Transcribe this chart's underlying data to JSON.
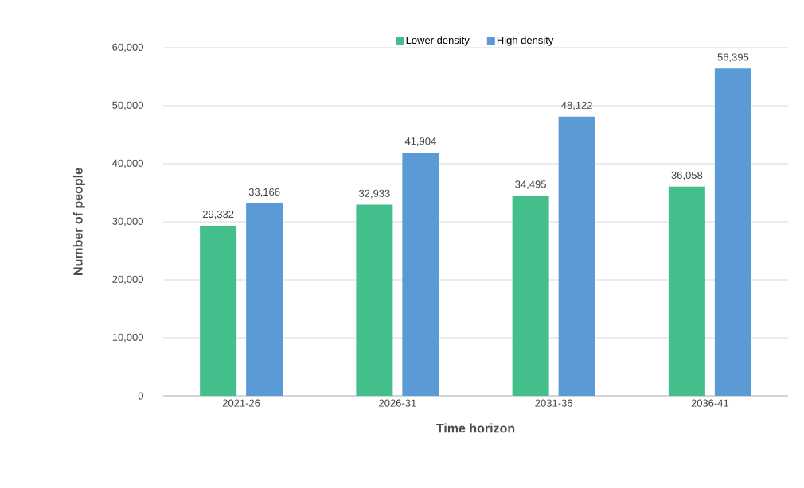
{
  "chart_data": {
    "type": "bar",
    "xlabel": "Time horizon",
    "ylabel": "Number of people",
    "categories": [
      "2021-26",
      "2026-31",
      "2031-36",
      "2036-41"
    ],
    "series": [
      {
        "name": "Lower density",
        "color": "#43bf8c",
        "values": [
          29332,
          32933,
          34495,
          36058
        ],
        "value_labels": [
          "29,332",
          "32,933",
          "34,495",
          "36,058"
        ]
      },
      {
        "name": "High density",
        "color": "#5b9bd5",
        "values": [
          33166,
          41904,
          48122,
          56395
        ],
        "value_labels": [
          "33,166",
          "41,904",
          "48,122",
          "56,395"
        ]
      }
    ],
    "ylim": [
      0,
      60000
    ],
    "yticks": [
      0,
      {
        "value": 10000,
        "label": "10,000"
      },
      {
        "value": 20000,
        "label": "20,000"
      },
      {
        "value": 30000,
        "label": "30,000"
      },
      {
        "value": 40000,
        "label": "40,000"
      },
      {
        "value": 50000,
        "label": "50,000"
      },
      {
        "value": 60000,
        "label": "60,000"
      }
    ],
    "grid": "y",
    "legend": "top"
  }
}
